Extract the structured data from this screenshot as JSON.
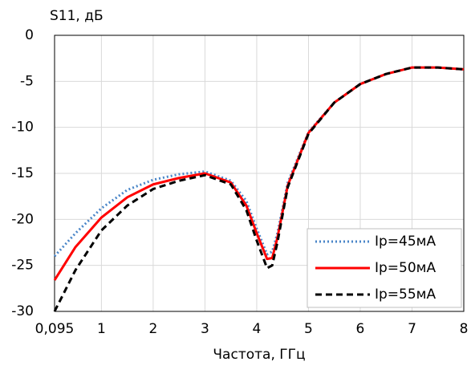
{
  "chart_data": {
    "type": "line",
    "title": "S11, дБ",
    "x_label": "Частота, ГГц",
    "x": [
      0.095,
      0.5,
      1,
      1.5,
      2,
      2.5,
      3,
      3.5,
      3.8,
      4,
      4.2,
      4.3,
      4.4,
      4.6,
      5,
      5.5,
      6,
      6.5,
      7,
      7.5,
      8
    ],
    "series": [
      {
        "name": "Ip=45мА",
        "color": "#4a86c8",
        "dash": "dotted",
        "values": [
          -24,
          -21.5,
          -18.8,
          -16.8,
          -15.7,
          -15.1,
          -14.8,
          -15.8,
          -18,
          -21,
          -23.8,
          -23.5,
          -21.5,
          -16,
          -10.5,
          -7.3,
          -5.3,
          -4.2,
          -3.5,
          -3.5,
          -3.7
        ]
      },
      {
        "name": "Ip=50мА",
        "color": "#ff0000",
        "dash": "solid",
        "values": [
          -26.6,
          -23,
          -19.8,
          -17.6,
          -16.2,
          -15.5,
          -15,
          -16,
          -18.5,
          -21.5,
          -24.3,
          -24.2,
          -22,
          -16.3,
          -10.6,
          -7.3,
          -5.3,
          -4.2,
          -3.5,
          -3.5,
          -3.7
        ]
      },
      {
        "name": "Ip=55мА",
        "color": "#000000",
        "dash": "dashed",
        "values": [
          -30,
          -25.5,
          -21.2,
          -18.5,
          -16.7,
          -15.8,
          -15.2,
          -16.2,
          -19,
          -22.3,
          -25.3,
          -25,
          -22.5,
          -16.5,
          -10.7,
          -7.3,
          -5.3,
          -4.2,
          -3.5,
          -3.5,
          -3.7
        ]
      }
    ],
    "xlim": [
      0.095,
      8
    ],
    "xticks": [
      {
        "value": 0.095,
        "label": "0,095"
      },
      1,
      2,
      3,
      4,
      5,
      6,
      7,
      8
    ],
    "ylim": [
      -30,
      0
    ],
    "yticks": [
      0,
      -5,
      -10,
      -15,
      -20,
      -25,
      -30
    ],
    "grid": true,
    "legend": "lower right"
  }
}
